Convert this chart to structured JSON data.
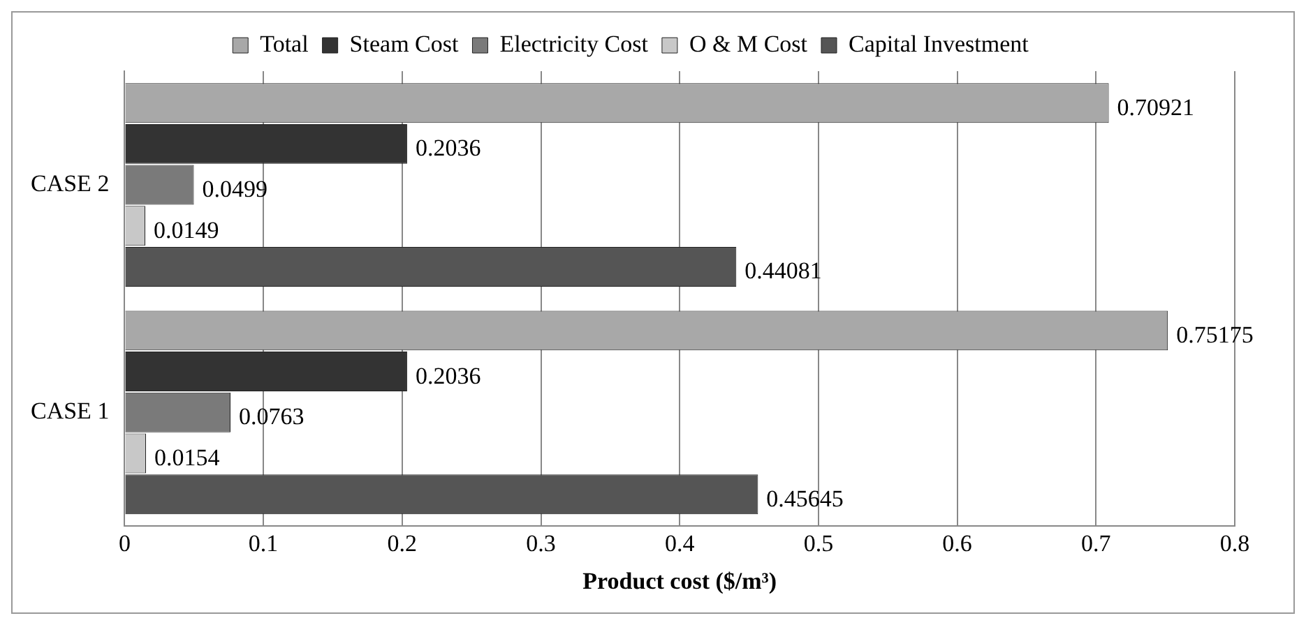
{
  "chart_data": {
    "type": "bar",
    "orientation": "horizontal",
    "xlabel": "Product cost ($/m³)",
    "categories": [
      "CASE 2",
      "CASE 1"
    ],
    "series": [
      {
        "name": "Total",
        "color": "#a8a8a8",
        "values": [
          0.70921,
          0.75175
        ]
      },
      {
        "name": "Steam Cost",
        "color": "#333333",
        "values": [
          0.2036,
          0.2036
        ]
      },
      {
        "name": "Electricity Cost",
        "color": "#7a7a7a",
        "values": [
          0.0499,
          0.0763
        ]
      },
      {
        "name": "O & M Cost",
        "color": "#c8c8c8",
        "values": [
          0.0149,
          0.0154
        ]
      },
      {
        "name": "Capital Investment",
        "color": "#555555",
        "values": [
          0.44081,
          0.45645
        ]
      }
    ],
    "xlim": [
      0,
      0.8
    ],
    "xticks": [
      0,
      0.1,
      0.2,
      0.3,
      0.4,
      0.5,
      0.6,
      0.7,
      0.8
    ],
    "grid": "x",
    "legend": "top",
    "data_labels": true
  }
}
